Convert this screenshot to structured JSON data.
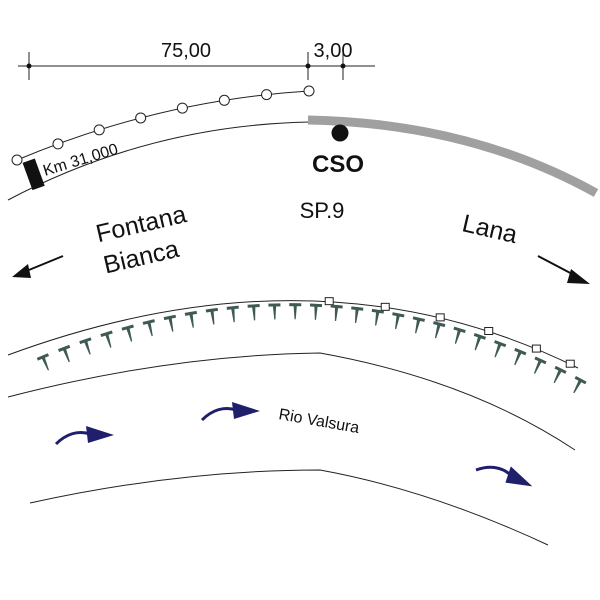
{
  "dimensions": {
    "total_length": "75,00",
    "offset_length": "3,00"
  },
  "road": {
    "km_label": "Km 31,000",
    "station_label": "CSO",
    "road_label": "SP.9"
  },
  "directions": {
    "left_line1": "Fontana",
    "left_line2": "Bianca",
    "right": "Lana"
  },
  "river": {
    "label": "Rio Valsura"
  },
  "colors": {
    "highlight_road": "#a0a0a0",
    "bollard": "#3f5a55",
    "flow_arrow": "#1f1f6b"
  }
}
